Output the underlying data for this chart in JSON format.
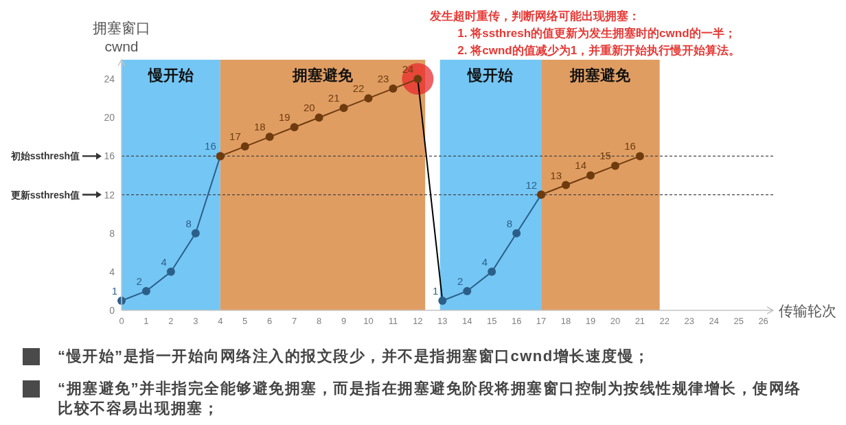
{
  "chart_data": {
    "type": "line",
    "xlabel": "传输轮次",
    "ylabel": "拥塞窗口\ncwnd",
    "xlim": [
      0,
      26.4
    ],
    "ylim": [
      0,
      26
    ],
    "xticks": [
      0,
      1,
      2,
      3,
      4,
      5,
      6,
      7,
      8,
      9,
      10,
      11,
      12,
      13,
      14,
      15,
      16,
      17,
      18,
      19,
      20,
      21,
      22,
      23,
      24,
      25,
      26
    ],
    "yticks": [
      0,
      4,
      8,
      12,
      16,
      20,
      24
    ],
    "marker": "circle",
    "series": [
      {
        "color": "#2b5f8a",
        "x": [
          0,
          1,
          2,
          3,
          4
        ],
        "values": [
          1,
          2,
          4,
          8,
          16
        ],
        "value_labels": [
          "1",
          "2",
          "4",
          "8",
          "16"
        ]
      },
      {
        "color": "#6e3b0e",
        "x": [
          4,
          5,
          6,
          7,
          8,
          9,
          10,
          11,
          12
        ],
        "values": [
          16,
          17,
          18,
          19,
          20,
          21,
          22,
          23,
          24
        ],
        "value_labels": [
          null,
          "17",
          "18",
          "19",
          "20",
          "21",
          "22",
          "23",
          "24"
        ]
      },
      {
        "color": "#000000",
        "x": [
          12,
          13
        ],
        "values": [
          24,
          1
        ],
        "marker": "none"
      },
      {
        "color": "#2b5f8a",
        "x": [
          13,
          14,
          15,
          16,
          17
        ],
        "values": [
          1,
          2,
          4,
          8,
          12
        ],
        "value_labels": [
          "1",
          "2",
          "4",
          "8",
          "12"
        ]
      },
      {
        "color": "#6e3b0e",
        "x": [
          17,
          18,
          19,
          20,
          21
        ],
        "values": [
          12,
          13,
          14,
          15,
          16
        ],
        "value_labels": [
          null,
          "13",
          "14",
          "15",
          "16"
        ]
      }
    ],
    "bands": [
      {
        "axis": "x",
        "from": 0,
        "to": 4,
        "label": "慢开始",
        "color": "#74c6f4"
      },
      {
        "axis": "x",
        "from": 4,
        "to": 12.3,
        "label": "拥塞避免",
        "color": "#e09d62"
      },
      {
        "axis": "x",
        "from": 12.9,
        "to": 17,
        "label": "慢开始",
        "color": "#74c6f4"
      },
      {
        "axis": "x",
        "from": 17,
        "to": 21.8,
        "label": "拥塞避免",
        "color": "#e09d62"
      }
    ],
    "ref_lines": [
      {
        "axis": "y",
        "value": 16,
        "label": "初始ssthresh值",
        "color": "#444444",
        "line_style": "dashed"
      },
      {
        "axis": "y",
        "value": 12,
        "label": "更新ssthresh值",
        "color": "#444444",
        "line_style": "dashed"
      }
    ],
    "annotations": [
      {
        "text": "发生超时重传，判断网络可能出现拥塞：\n1. 将ssthresh的值更新为发生拥塞时的cwnd的一半；\n2. 将cwnd的值减少为1，并重新开始执行慢开始算法。",
        "x": 12,
        "y": 24
      },
      "“慢开始”是指一开始向网络注入的报文段少，并不是指拥塞窗口cwnd增长速度慢；",
      "“拥塞避免”并非指完全能够避免拥塞，而是指在拥塞避免阶段将拥塞窗口控制为按线性规律增长，使网络比较不容易出现拥塞；"
    ]
  }
}
